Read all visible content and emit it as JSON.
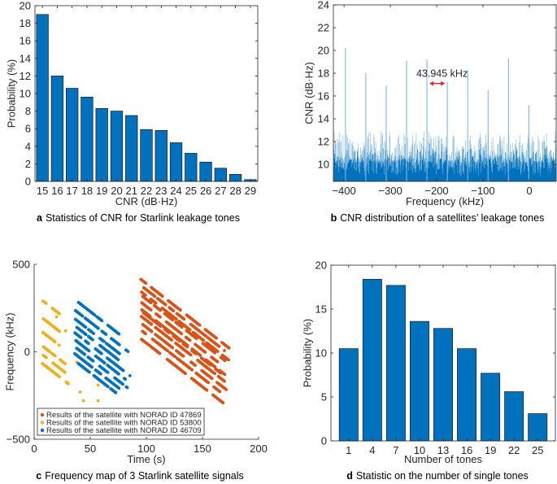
{
  "chart_data": [
    {
      "id": "a",
      "type": "bar",
      "caption_letter": "a",
      "caption": "Statistics of CNR for Starlink leakage tones",
      "xlabel": "CNR (dB·Hz)",
      "ylabel": "Probability (%)",
      "categories": [
        "15",
        "16",
        "17",
        "18",
        "19",
        "20",
        "21",
        "22",
        "23",
        "24",
        "25",
        "26",
        "27",
        "28",
        "29"
      ],
      "values": [
        19.0,
        12.0,
        10.6,
        9.6,
        8.3,
        8.0,
        7.5,
        5.9,
        5.8,
        4.4,
        3.2,
        2.2,
        1.5,
        0.8,
        0.2
      ],
      "ylim": [
        0,
        20
      ],
      "yticks": [
        0,
        2,
        4,
        6,
        8,
        10,
        12,
        14,
        16,
        18,
        20
      ],
      "bar_color": "#0072BD",
      "grid": false
    },
    {
      "id": "b",
      "type": "line",
      "caption_letter": "b",
      "caption": "CNR distribution of a satellites’ leakage tones",
      "xlabel": "Frequency (kHz)",
      "ylabel": "CNR (dB·Hz)",
      "xlim": [
        -423,
        58
      ],
      "ylim": [
        8.5,
        24
      ],
      "xticks": [
        -400,
        -300,
        -200,
        -100,
        0
      ],
      "xtick_labels": [
        "−400",
        "−300",
        "−200",
        "−100",
        "0"
      ],
      "yticks": [
        10,
        12,
        14,
        16,
        18,
        20,
        22,
        24
      ],
      "tone_spacing_khz": 43.945,
      "tones": [
        {
          "x": -397,
          "y": 20.2
        },
        {
          "x": -353,
          "y": 18.0
        },
        {
          "x": -309,
          "y": 16.9
        },
        {
          "x": -265,
          "y": 19.1
        },
        {
          "x": -221,
          "y": 19.2
        },
        {
          "x": -177,
          "y": 17.2
        },
        {
          "x": -133,
          "y": 18.3
        },
        {
          "x": -89,
          "y": 16.5
        },
        {
          "x": -45,
          "y": 19.3
        },
        {
          "x": -1,
          "y": 15.2
        }
      ],
      "noise_floor": {
        "mean": 9.8,
        "max": 12.5
      },
      "annotation": {
        "text": "43.945 kHz",
        "x_from": -221,
        "x_to": -177,
        "y": 17.1,
        "color": "#E8262B"
      },
      "line_color": "#0072BD",
      "light_color": "#7FB8DE",
      "grid": false
    },
    {
      "id": "c",
      "type": "scatter",
      "caption_letter": "c",
      "caption": "Frequency map of 3 Starlink satellite signals",
      "xlabel": "Time (s)",
      "ylabel": "Frequency (kHz)",
      "xlim": [
        0,
        200
      ],
      "ylim": [
        -500,
        500
      ],
      "xticks": [
        0,
        50,
        100,
        150,
        200
      ],
      "yticks": [
        -500,
        0,
        500
      ],
      "ytick_labels": [
        "−500",
        "0",
        "500"
      ],
      "legend_position": "bottom-left",
      "series": [
        {
          "name": "Results of the satellite with NORAD ID 47869",
          "color": "#D95319",
          "t_range": [
            94,
            176
          ],
          "slope_khz_per_s": -5.0,
          "track_offsets_at_t_start": [
            420,
            385,
            350,
            330,
            290,
            250,
            240,
            210,
            170,
            130,
            80
          ],
          "segments": "dashed diagonal tracks"
        },
        {
          "name": "Results of the satellite with NORAD ID 53800",
          "color": "#EDB120",
          "t_range": [
            6,
            33
          ],
          "slope_khz_per_s": -5.0,
          "track_offsets_at_t_start": [
            300,
            200,
            120,
            40,
            -10,
            -60
          ],
          "extra_points": [
            [
              20,
              200
            ],
            [
              28,
              120
            ],
            [
              38,
              -60
            ],
            [
              41,
              -230
            ],
            [
              44,
              -280
            ],
            [
              57,
              -190
            ],
            [
              57,
              -280
            ],
            [
              57,
              -370
            ]
          ]
        },
        {
          "name": "Results of the satellite with NORAD ID 46709",
          "color": "#0072BD",
          "t_range": [
            36,
            87
          ],
          "slope_khz_per_s": -5.0,
          "track_offsets_at_t_start": [
            300,
            240,
            190,
            150,
            110,
            70,
            30,
            -10,
            -50
          ],
          "segments": "dashed diagonal tracks"
        }
      ],
      "grid": false
    },
    {
      "id": "d",
      "type": "bar",
      "caption_letter": "d",
      "caption": "Statistic on the number of single tones",
      "xlabel": "Number of tones",
      "ylabel": "Probability (%)",
      "categories": [
        "1",
        "4",
        "7",
        "10",
        "13",
        "16",
        "19",
        "22",
        "25"
      ],
      "values": [
        10.5,
        18.4,
        17.7,
        13.6,
        12.8,
        10.5,
        7.7,
        5.6,
        3.1
      ],
      "ylim": [
        0,
        20
      ],
      "yticks": [
        0,
        5,
        10,
        15,
        20
      ],
      "bar_color": "#0072BD",
      "grid": false
    }
  ]
}
